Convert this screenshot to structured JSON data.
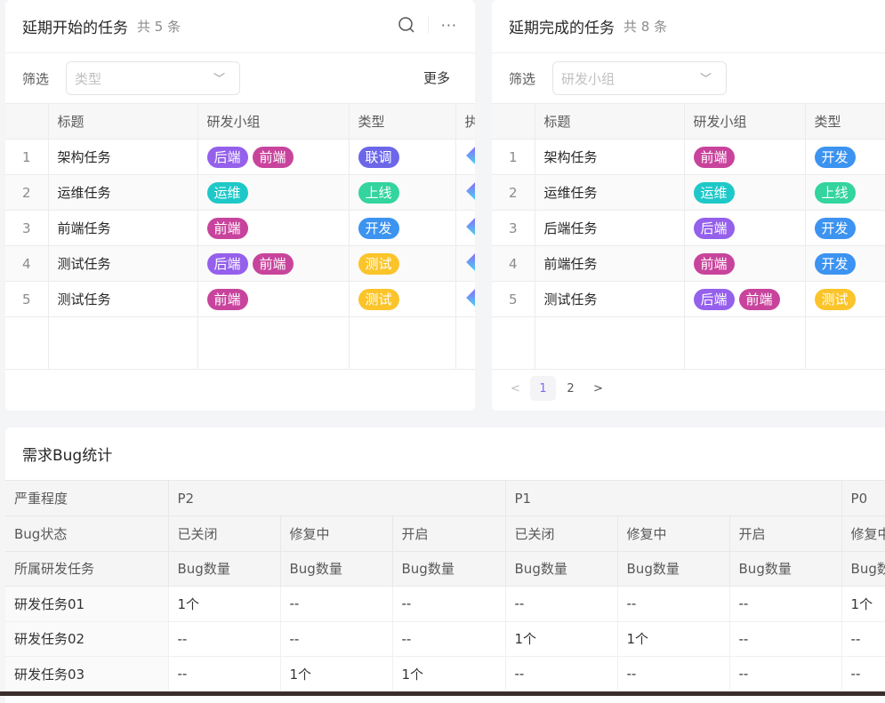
{
  "colors": {
    "后端": "#9460ec",
    "前端": "#c8449c",
    "运维": "#1fc8c8",
    "联调": "#6c67e8",
    "上线": "#33d49d",
    "开发": "#3c93f0",
    "测试": "#fbc42a"
  },
  "panel1": {
    "title": "延期开始的任务",
    "count": "共 5 条",
    "filter_label": "筛选",
    "filter_placeholder": "类型",
    "more_label": "更多",
    "columns": [
      "",
      "标题",
      "研发小组",
      "类型",
      "执"
    ],
    "rows": [
      {
        "idx": "1",
        "title": "架构任务",
        "groups": [
          "后端",
          "前端"
        ],
        "type": "联调"
      },
      {
        "idx": "2",
        "title": "运维任务",
        "groups": [
          "运维"
        ],
        "type": "上线"
      },
      {
        "idx": "3",
        "title": "前端任务",
        "groups": [
          "前端"
        ],
        "type": "开发"
      },
      {
        "idx": "4",
        "title": "测试任务",
        "groups": [
          "后端",
          "前端"
        ],
        "type": "测试"
      },
      {
        "idx": "5",
        "title": "测试任务",
        "groups": [
          "前端"
        ],
        "type": "测试"
      }
    ]
  },
  "panel2": {
    "title": "延期完成的任务",
    "count": "共 8 条",
    "filter_label": "筛选",
    "filter_placeholder": "研发小组",
    "columns": [
      "",
      "标题",
      "研发小组",
      "类型"
    ],
    "rows": [
      {
        "idx": "1",
        "title": "架构任务",
        "groups": [
          "前端"
        ],
        "type": "开发"
      },
      {
        "idx": "2",
        "title": "运维任务",
        "groups": [
          "运维"
        ],
        "type": "上线"
      },
      {
        "idx": "3",
        "title": "后端任务",
        "groups": [
          "后端"
        ],
        "type": "开发"
      },
      {
        "idx": "4",
        "title": "前端任务",
        "groups": [
          "前端"
        ],
        "type": "开发"
      },
      {
        "idx": "5",
        "title": "测试任务",
        "groups": [
          "后端",
          "前端"
        ],
        "type": "测试"
      }
    ],
    "pagination": {
      "prev": "<",
      "pages": [
        "1",
        "2"
      ],
      "current": "1",
      "next": ">"
    }
  },
  "panel3": {
    "title": "需求Bug统计",
    "severity_row": [
      "严重程度",
      "P2",
      "P1",
      "P0"
    ],
    "status_row": [
      "Bug状态",
      "已关闭",
      "修复中",
      "开启",
      "已关闭",
      "修复中",
      "开启",
      "修复中"
    ],
    "metric_row": [
      "所属研发任务",
      "Bug数量",
      "Bug数量",
      "Bug数量",
      "Bug数量",
      "Bug数量",
      "Bug数量",
      "Bug数量"
    ],
    "rows": [
      [
        "研发任务01",
        "1个",
        "--",
        "--",
        "--",
        "--",
        "--",
        "1个"
      ],
      [
        "研发任务02",
        "--",
        "--",
        "--",
        "1个",
        "1个",
        "--",
        "--"
      ],
      [
        "研发任务03",
        "--",
        "1个",
        "1个",
        "--",
        "--",
        "--",
        "--"
      ]
    ]
  }
}
